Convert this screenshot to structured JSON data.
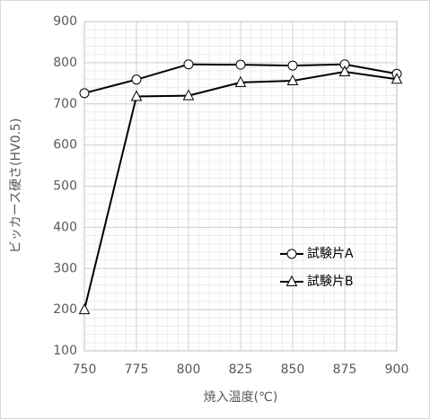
{
  "chart_data": {
    "type": "line",
    "xlabel": "焼入温度(℃)",
    "ylabel": "ビッカース硬さ(HV0.5)",
    "x": [
      750,
      775,
      800,
      825,
      850,
      875,
      900
    ],
    "series": [
      {
        "name": "試験片A",
        "color": "#000000",
        "marker": "circle",
        "values": [
          726,
          759,
          796,
          795,
          793,
          796,
          773
        ]
      },
      {
        "name": "試験片B",
        "color": "#000000",
        "marker": "triangle",
        "values": [
          200,
          718,
          720,
          752,
          756,
          778,
          760
        ]
      }
    ],
    "xlim": [
      750,
      900
    ],
    "xticks": [
      750,
      775,
      800,
      825,
      850,
      875,
      900
    ],
    "ylim": [
      100,
      900
    ],
    "yticks": [
      100,
      200,
      300,
      400,
      500,
      600,
      700,
      800,
      900
    ],
    "grid": true,
    "minor_grid": true,
    "legend": "center-right"
  }
}
